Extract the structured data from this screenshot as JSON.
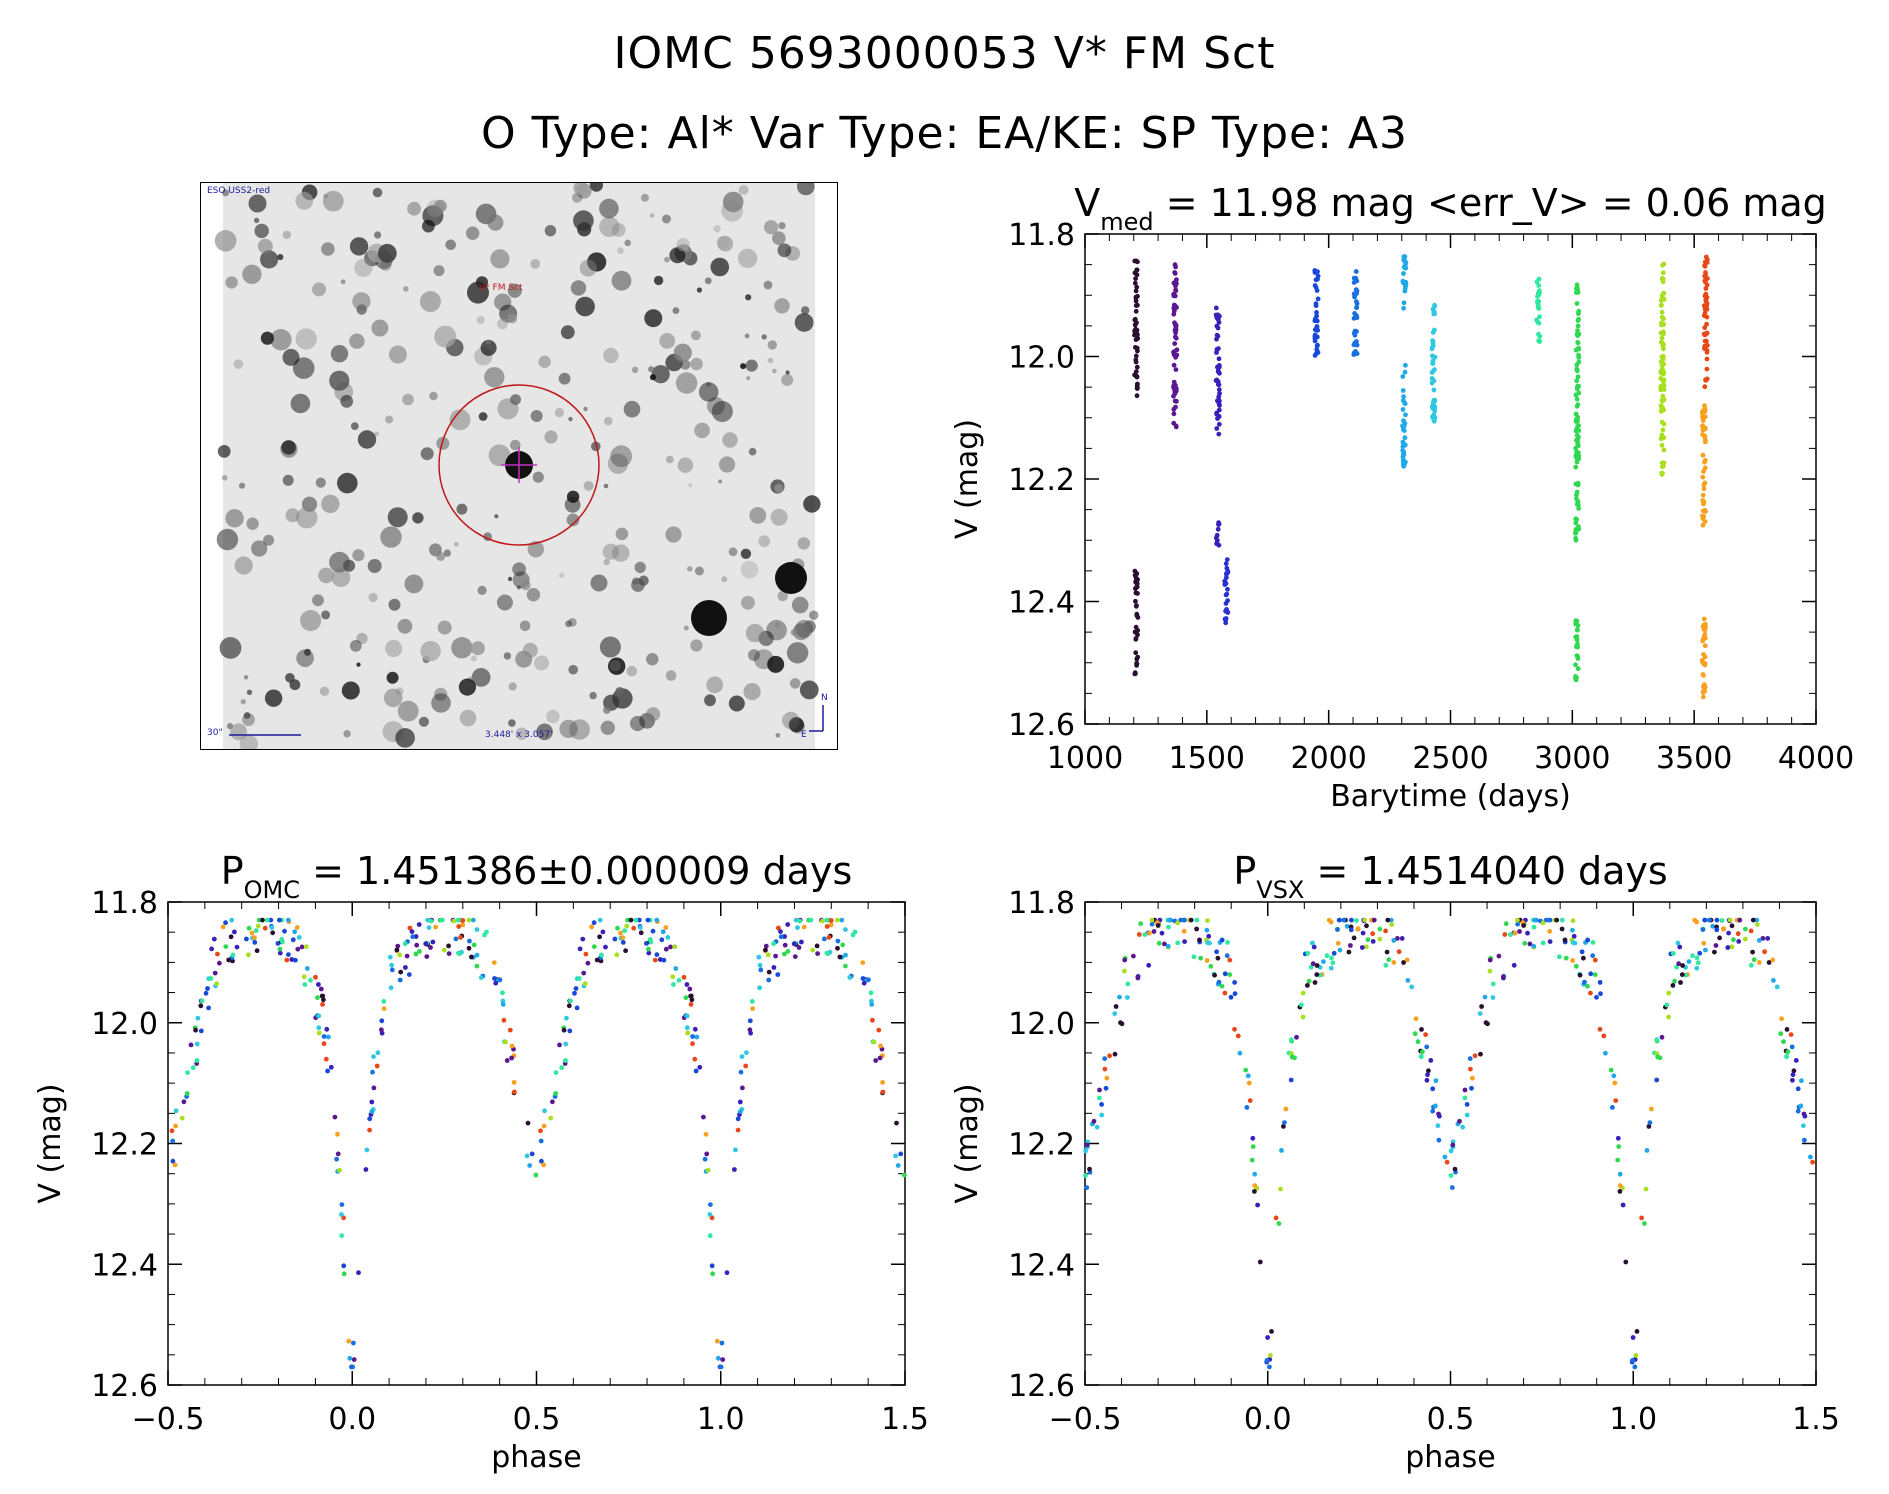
{
  "header": {
    "line1": "IOMC 5693000053    V* FM Sct",
    "line2": "O Type: Al*  Var Type: EA/KE:  SP Type: A3"
  },
  "finder": {
    "survey_label": "ESO USS2-red",
    "target_label": "V* FM Sct",
    "scale_label": "30\"",
    "size_label": "3.448' x 3.057'",
    "north_label": "N",
    "east_label": "E"
  },
  "colors": {
    "marker_ring": "#c01818",
    "crosshair": "#c030c0",
    "caption": "#1c1c9c"
  },
  "plots": {
    "lightcurve": {
      "title_prefix": "V",
      "title_sub": "med",
      "title_rest": " = 11.98 mag <err_V> = 0.06 mag"
    },
    "phase_omc": {
      "title_prefix": "P",
      "title_sub": "OMC",
      "title_rest": " = 1.451386±0.000009 days"
    },
    "phase_vsx": {
      "title_prefix": "P",
      "title_sub": "VSX",
      "title_rest": " = 1.4514040 days"
    }
  },
  "chart_data": [
    {
      "id": "lightcurve",
      "type": "scatter",
      "xlabel": "Barytime (days)",
      "ylabel": "V (mag)",
      "xlim": [
        1000,
        4000
      ],
      "ylim": [
        12.6,
        11.8
      ],
      "xticks": [
        1000,
        1500,
        2000,
        2500,
        3000,
        3500,
        4000
      ],
      "yticks": [
        11.8,
        12.0,
        12.2,
        12.4,
        12.6
      ],
      "yticklabels": [
        "11.8",
        "12.0",
        "12.2",
        "12.4",
        "12.6"
      ],
      "median_mag": 11.98,
      "mean_err": 0.06,
      "series": [
        {
          "name": "epoch-1210",
          "color": "#2a1030",
          "x": 1210,
          "ranges": [
            [
              11.84,
              12.07
            ],
            [
              12.35,
              12.52
            ]
          ]
        },
        {
          "name": "epoch-1370",
          "color": "#5a1890",
          "x": 1370,
          "ranges": [
            [
              11.85,
              12.12
            ]
          ]
        },
        {
          "name": "epoch-1545",
          "color": "#3a20b8",
          "x": 1545,
          "ranges": [
            [
              11.92,
              12.13
            ],
            [
              12.27,
              12.31
            ]
          ]
        },
        {
          "name": "epoch-1580",
          "color": "#2a30d0",
          "x": 1580,
          "ranges": [
            [
              12.33,
              12.44
            ]
          ]
        },
        {
          "name": "epoch-1950",
          "color": "#1848d8",
          "x": 1950,
          "ranges": [
            [
              11.85,
              12.0
            ]
          ]
        },
        {
          "name": "epoch-2110",
          "color": "#1870e0",
          "x": 2110,
          "ranges": [
            [
              11.86,
              12.0
            ]
          ]
        },
        {
          "name": "epoch-2310",
          "color": "#20a8e8",
          "x": 2310,
          "ranges": [
            [
              11.83,
              11.93
            ],
            [
              12.01,
              12.18
            ]
          ]
        },
        {
          "name": "epoch-2430",
          "color": "#30c8e0",
          "x": 2430,
          "ranges": [
            [
              11.91,
              12.11
            ]
          ]
        },
        {
          "name": "epoch-2860",
          "color": "#30e8a0",
          "x": 2860,
          "ranges": [
            [
              11.87,
              11.98
            ]
          ]
        },
        {
          "name": "epoch-3020",
          "color": "#30d850",
          "x": 3020,
          "ranges": [
            [
              11.88,
              12.3
            ],
            [
              12.43,
              12.53
            ]
          ]
        },
        {
          "name": "epoch-3370",
          "color": "#a8e020",
          "x": 3370,
          "ranges": [
            [
              11.84,
              12.2
            ]
          ]
        },
        {
          "name": "epoch-3540a",
          "color": "#f8a020",
          "x": 3540,
          "ranges": [
            [
              12.08,
              12.28
            ],
            [
              12.42,
              12.56
            ]
          ]
        },
        {
          "name": "epoch-3545b",
          "color": "#e84818",
          "x": 3548,
          "ranges": [
            [
              11.83,
              12.05
            ]
          ]
        }
      ]
    },
    {
      "id": "phase_omc",
      "type": "scatter",
      "xlabel": "phase",
      "ylabel": "V (mag)",
      "period_days": 1.451386,
      "period_err": 9e-06,
      "xlim": [
        -0.5,
        1.5
      ],
      "ylim": [
        12.6,
        11.8
      ],
      "xticks": [
        -0.5,
        0.0,
        0.5,
        1.0,
        1.5
      ],
      "xticklabels": [
        "−0.5",
        "0.0",
        "0.5",
        "1.0",
        "1.5"
      ],
      "yticks": [
        11.8,
        12.0,
        12.2,
        12.4,
        12.6
      ],
      "yticklabels": [
        "11.8",
        "12.0",
        "12.2",
        "12.4",
        "12.6"
      ],
      "primary_minimum": {
        "phase": 0.0,
        "mag": 12.55
      },
      "secondary_minimum": {
        "phase": 0.5,
        "mag": 12.2
      },
      "maximum_mag": 11.84
    },
    {
      "id": "phase_vsx",
      "type": "scatter",
      "xlabel": "phase",
      "ylabel": "V (mag)",
      "period_days": 1.451404,
      "xlim": [
        -0.5,
        1.5
      ],
      "ylim": [
        12.6,
        11.8
      ],
      "xticks": [
        -0.5,
        0.0,
        0.5,
        1.0,
        1.5
      ],
      "xticklabels": [
        "−0.5",
        "0.0",
        "0.5",
        "1.0",
        "1.5"
      ],
      "yticks": [
        11.8,
        12.0,
        12.2,
        12.4,
        12.6
      ],
      "yticklabels": [
        "11.8",
        "12.0",
        "12.2",
        "12.4",
        "12.6"
      ],
      "primary_minimum": {
        "phase": 0.0,
        "mag": 12.55
      },
      "secondary_minimum": {
        "phase": 0.5,
        "mag": 12.2
      },
      "maximum_mag": 11.84
    }
  ]
}
